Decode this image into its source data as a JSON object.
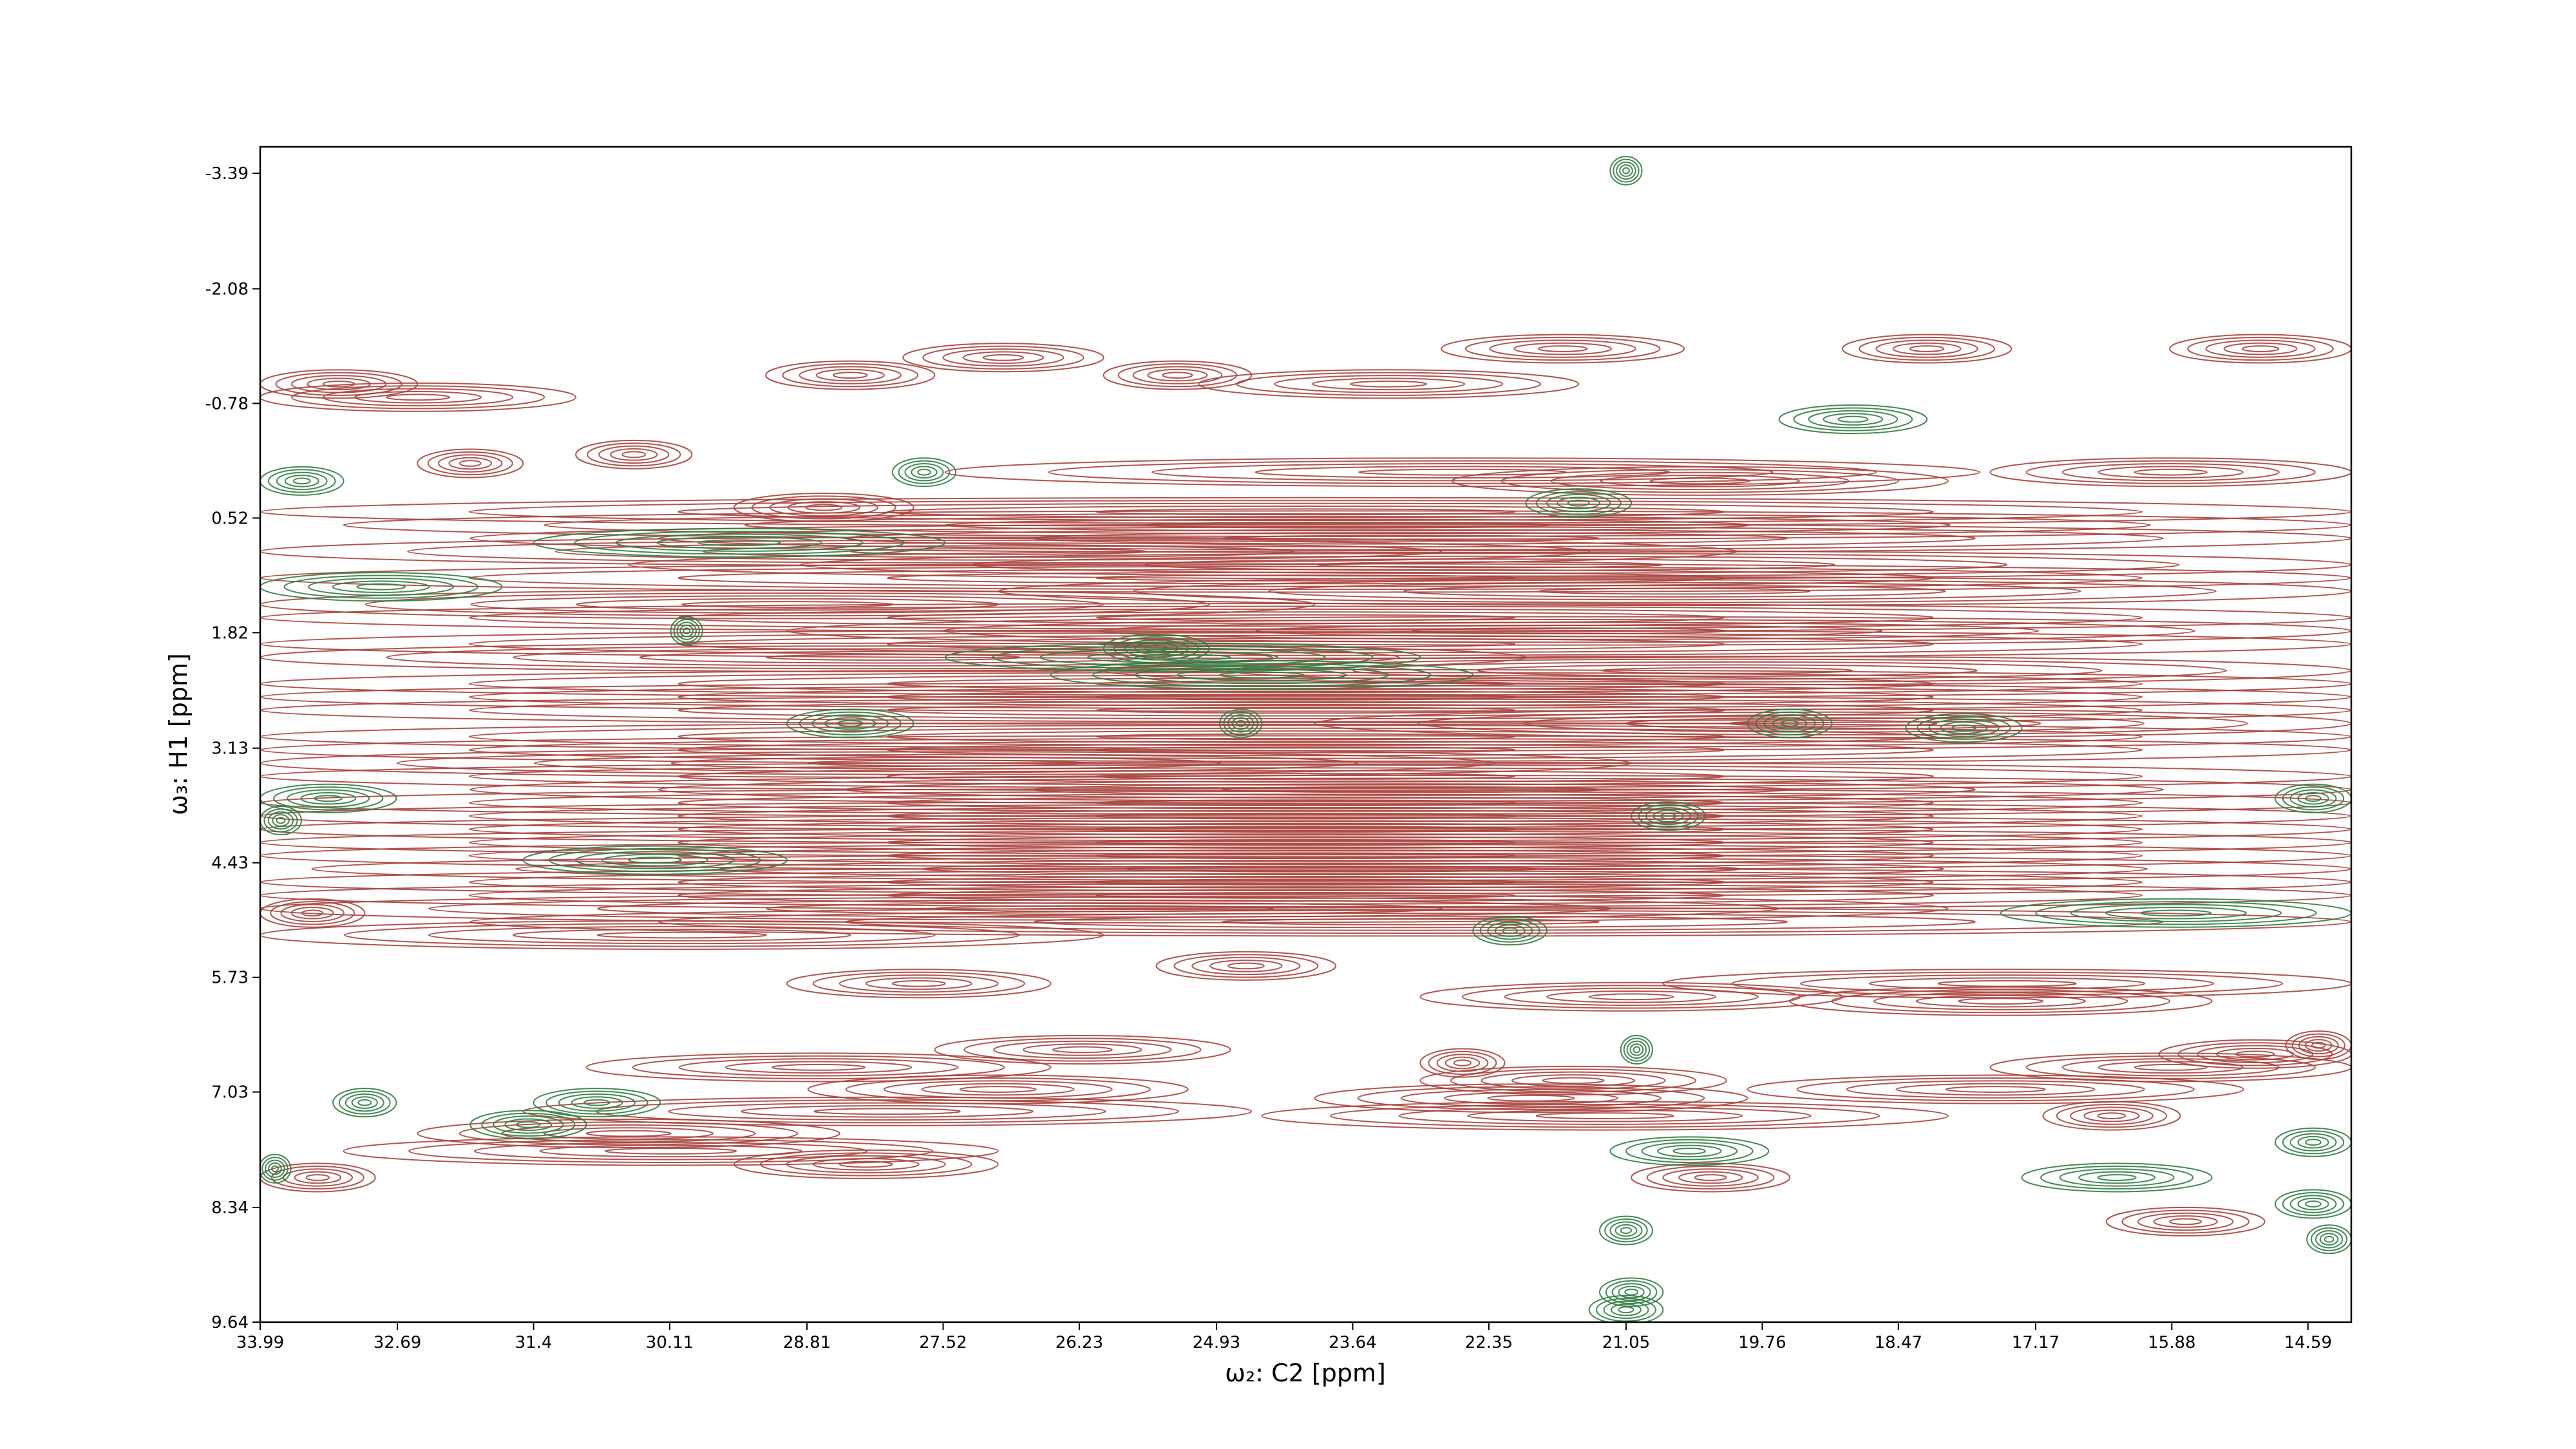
{
  "chart_data": {
    "type": "contour",
    "xlabel": "ω₂: C2 [ppm]",
    "ylabel": "ω₃: H1 [ppm]",
    "xlim": [
      33.99,
      14.18
    ],
    "ylim": [
      -3.69,
      9.64
    ],
    "xticks": [
      33.99,
      32.69,
      31.4,
      30.11,
      28.81,
      27.52,
      26.23,
      24.93,
      23.64,
      22.35,
      21.05,
      19.76,
      18.47,
      17.17,
      15.88,
      14.59
    ],
    "yticks": [
      -3.39,
      -2.08,
      -0.78,
      0.52,
      1.82,
      3.13,
      4.43,
      5.73,
      7.03,
      8.34,
      9.64
    ],
    "series": [
      {
        "color": "#a8423c",
        "x0": [
          33.99,
          33.99,
          32.5,
          31.0,
          29.2,
          27.9,
          26.0,
          25.1,
          22.8,
          19.0,
          15.9,
          27.5,
          22.7,
          29.5,
          17.6,
          33.99,
          33.2,
          32.0,
          33.99,
          30.5,
          33.99,
          27.0,
          33.99,
          33.99,
          29.0,
          33.99,
          33.99,
          26.0,
          33.99,
          33.99,
          33.99,
          24.0,
          33.99,
          33.99,
          33.99,
          33.99,
          32.0,
          33.99,
          33.99,
          33.99,
          33.99,
          33.99,
          33.5,
          33.99,
          33.99,
          33.99,
          32.0,
          33.99,
          27.6,
          30.9,
          28.8,
          31.5,
          32.5,
          33.2,
          29.5,
          24.0,
          23.0,
          17.6,
          19.9,
          17.1,
          33.99,
          21.0,
          16.0,
          16.5,
          24.5,
          23.0,
          33.99,
          29.0,
          25.5,
          23.0,
          20.7,
          19.5,
          14.8
        ],
        "x1": [
          31.0,
          32.5,
          31.5,
          29.9,
          27.6,
          26.0,
          24.6,
          21.5,
          20.5,
          17.4,
          14.18,
          17.7,
          18.0,
          27.8,
          14.18,
          14.18,
          14.18,
          14.18,
          20.0,
          14.18,
          14.18,
          14.18,
          24.0,
          14.18,
          14.18,
          14.18,
          22.0,
          14.18,
          14.18,
          14.18,
          14.18,
          14.18,
          14.18,
          14.18,
          21.0,
          14.18,
          14.18,
          14.18,
          14.18,
          14.18,
          14.18,
          14.18,
          14.18,
          14.18,
          14.18,
          18.0,
          14.18,
          26.0,
          24.8,
          26.5,
          25.2,
          24.6,
          28.5,
          27.0,
          27.0,
          19.9,
          22.2,
          14.18,
          15.2,
          15.8,
          32.9,
          19.5,
          14.18,
          15.0,
          18.0,
          20.1,
          33.0,
          26.5,
          23.8,
          19.0,
          14.18,
          15.5,
          14.18
        ],
        "y": [
          -0.85,
          -1.0,
          -0.1,
          -0.2,
          -1.1,
          -1.3,
          -1.1,
          -1.0,
          -1.4,
          -1.4,
          -1.4,
          0.0,
          0.1,
          0.4,
          0.0,
          0.45,
          0.6,
          0.75,
          0.9,
          1.05,
          1.2,
          1.35,
          1.5,
          1.65,
          1.8,
          1.95,
          2.1,
          2.25,
          2.4,
          2.55,
          2.7,
          2.85,
          3.0,
          3.15,
          3.3,
          3.45,
          3.6,
          3.75,
          3.9,
          4.05,
          4.2,
          4.35,
          4.5,
          4.65,
          4.8,
          4.95,
          5.1,
          5.25,
          6.55,
          6.75,
          7.0,
          7.25,
          7.5,
          7.7,
          7.85,
          7.1,
          6.7,
          6.75,
          7.0,
          7.3,
          8.0,
          8.0,
          6.6,
          8.5,
          7.3,
          6.9,
          5.0,
          5.8,
          5.6,
          5.95,
          5.8,
          6.0,
          6.5
        ]
      },
      {
        "color": "#2f7d40",
        "x0": [
          21.2,
          28.0,
          19.6,
          33.99,
          22.0,
          31.4,
          33.99,
          30.1,
          27.5,
          26.5,
          29.0,
          24.9,
          19.9,
          18.4,
          33.99,
          33.99,
          26.0,
          21.0,
          31.5,
          22.5,
          17.5,
          14.9,
          21.1,
          33.3,
          31.4,
          32.0,
          21.2,
          17.3,
          14.9,
          14.9,
          14.6,
          21.3,
          21.3,
          21.4,
          34.0
        ],
        "x1": [
          20.9,
          27.4,
          18.2,
          33.2,
          21.0,
          27.5,
          31.7,
          29.8,
          23.0,
          22.5,
          27.8,
          24.5,
          19.1,
          17.3,
          32.7,
          33.6,
          25.0,
          20.3,
          29.0,
          21.8,
          14.18,
          14.18,
          20.8,
          32.7,
          30.2,
          30.9,
          19.7,
          15.5,
          14.18,
          14.18,
          14.18,
          20.8,
          20.7,
          20.7,
          33.7
        ],
        "y": [
          -3.42,
          0.0,
          -0.6,
          0.1,
          0.35,
          0.8,
          1.3,
          1.8,
          2.1,
          2.3,
          2.85,
          2.85,
          2.85,
          2.9,
          3.7,
          3.95,
          2.0,
          3.9,
          4.4,
          5.2,
          5.0,
          3.7,
          6.55,
          7.15,
          7.15,
          7.4,
          7.7,
          8.0,
          7.6,
          8.3,
          8.7,
          8.6,
          9.3,
          9.5,
          7.9
        ]
      }
    ]
  }
}
